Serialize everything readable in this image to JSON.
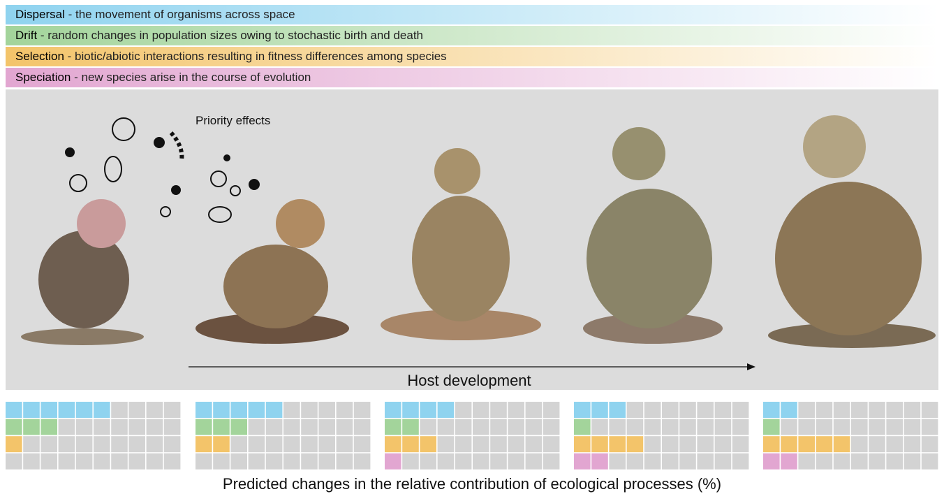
{
  "legend": [
    {
      "term": "Dispersal",
      "description": " - the movement of organisms across space",
      "color": "#8fd3ef"
    },
    {
      "term": "Drift",
      "description": " - random changes in population sizes owing to stochastic birth and death",
      "color": "#a3d49b"
    },
    {
      "term": "Selection",
      "description": " - biotic/abiotic interactions resulting in fitness differences among species",
      "color": "#f3c46a"
    },
    {
      "term": "Speciation",
      "description": " - new species arise in the course of evolution",
      "color": "#e2a6d1"
    }
  ],
  "panel": {
    "annotation": "Priority effects",
    "axis_label": "Host development"
  },
  "groups": [
    {
      "values": [
        6,
        3,
        1,
        0
      ]
    },
    {
      "values": [
        5,
        3,
        2,
        0
      ]
    },
    {
      "values": [
        4,
        2,
        3,
        1
      ]
    },
    {
      "values": [
        3,
        1,
        4,
        2
      ]
    },
    {
      "values": [
        2,
        1,
        5,
        2
      ]
    }
  ],
  "caption": "Predicted changes in the relative contribution of ecological processes (%)"
}
